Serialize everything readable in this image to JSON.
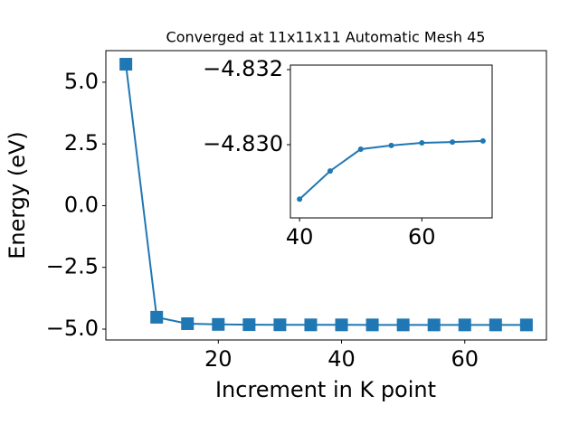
{
  "chart_data": [
    {
      "type": "line",
      "title": "Converged at 11x11x11 Automatic Mesh 45",
      "x_label": "Increment in K point",
      "y_label": "Energy (eV)",
      "x": [
        5,
        10,
        15,
        20,
        25,
        30,
        35,
        40,
        45,
        50,
        55,
        60,
        65,
        70
      ],
      "series": [
        {
          "color": "#1f77b4",
          "marker": "square",
          "values": [
            5.73,
            -4.52,
            -4.78,
            -4.81,
            -4.82,
            -4.825,
            -4.828,
            -4.8286,
            -4.8293,
            -4.8299,
            -4.83,
            -4.8301,
            -4.8301,
            -4.8301
          ]
        }
      ],
      "xlim": [
        1.75,
        73.25
      ],
      "ylim": [
        -5.44,
        6.28
      ],
      "xticks": [
        20,
        40,
        60
      ],
      "yticks": [
        {
          "value": -5,
          "label": "−5.0"
        },
        {
          "value": -2.5,
          "label": "−2.5"
        },
        {
          "value": 0,
          "label": "0.0"
        },
        {
          "value": 2.5,
          "label": "2.5"
        },
        {
          "value": 5,
          "label": "5.0"
        }
      ]
    },
    {
      "type": "line",
      "x": [
        40,
        45,
        50,
        55,
        60,
        65,
        70
      ],
      "series": [
        {
          "color": "#1f77b4",
          "marker": "circle",
          "values": [
            -4.82855,
            -4.8293,
            -4.82988,
            -4.82998,
            -4.83005,
            -4.83007,
            -4.8301
          ]
        }
      ],
      "xlim": [
        38.5,
        71.5
      ],
      "ylim": [
        -4.82805,
        -4.83212
      ],
      "xticks": [
        40,
        60
      ],
      "yticks": [
        {
          "value": -4.832,
          "label": "−4.832"
        },
        {
          "value": -4.83,
          "label": "−4.830"
        }
      ]
    }
  ]
}
